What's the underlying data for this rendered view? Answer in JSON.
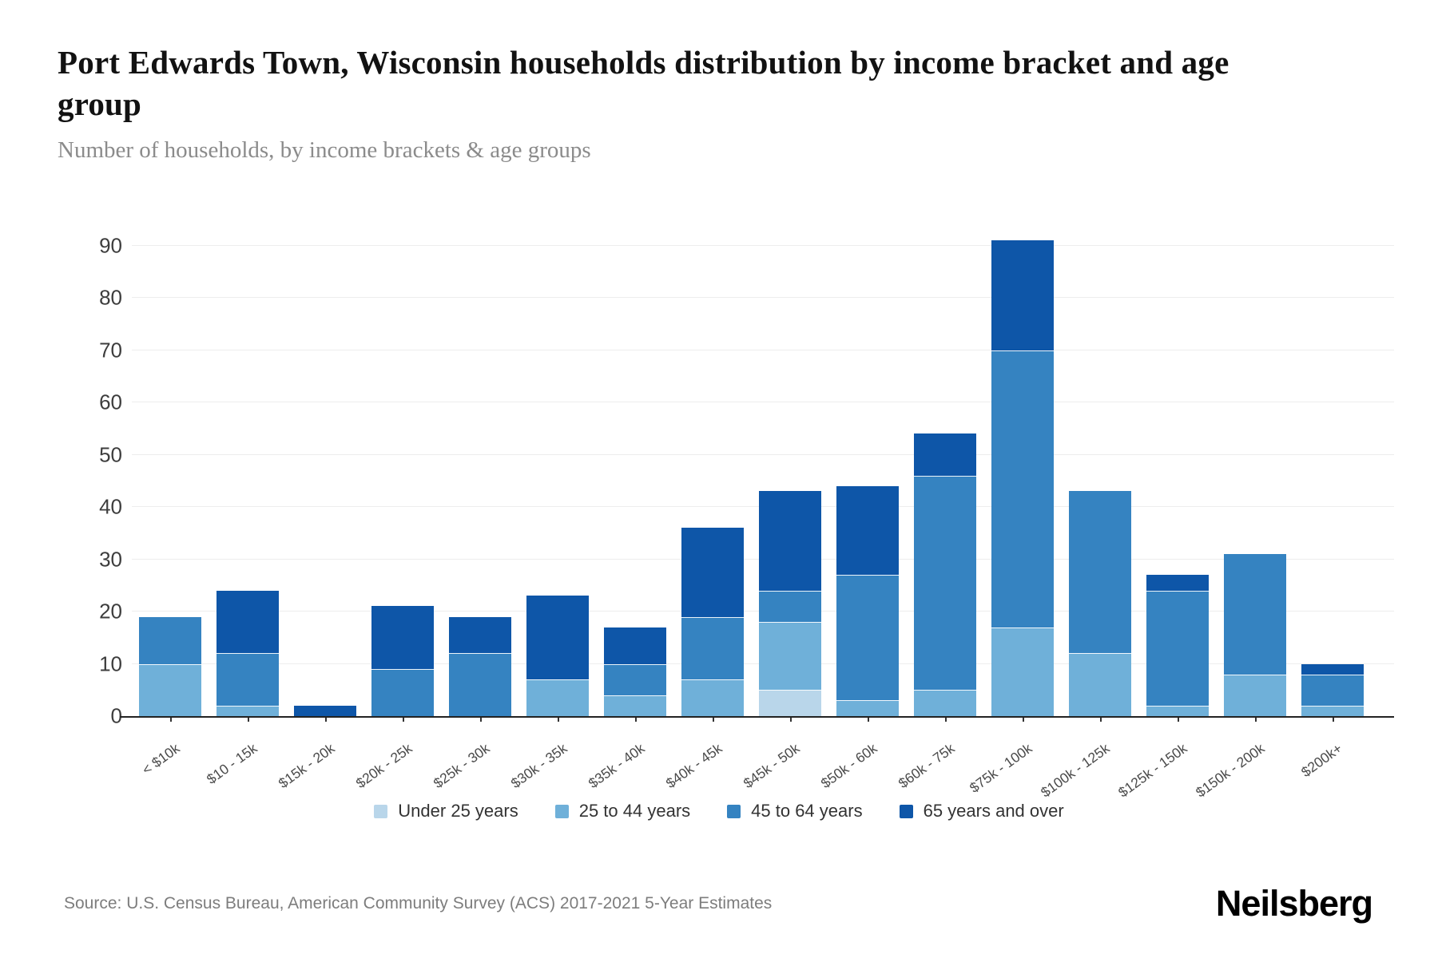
{
  "header": {
    "title": "Port Edwards Town, Wisconsin households distribution by income bracket and age group",
    "subtitle": "Number of households, by income brackets & age groups"
  },
  "footer": {
    "source": "Source: U.S. Census Bureau, American Community Survey (ACS) 2017-2021 5-Year Estimates",
    "brand": "Neilsberg"
  },
  "colors": {
    "grid": "#ededed",
    "axis": "#222222",
    "y_tick_label": "#3d3d3d",
    "x_tick_label": "#4a4a4a",
    "title": "#121212",
    "subtitle": "#8b8b8b"
  },
  "chart_data": {
    "type": "bar",
    "stacked": true,
    "title": "Port Edwards Town, Wisconsin households distribution by income bracket and age group",
    "subtitle": "Number of households, by income brackets & age groups",
    "xlabel": "",
    "ylabel": "",
    "ylim": [
      0,
      91
    ],
    "yticks": [
      0,
      10,
      20,
      30,
      40,
      50,
      60,
      70,
      80,
      90
    ],
    "grid": true,
    "legend_position": "bottom",
    "categories": [
      "< $10k",
      "$10 - 15k",
      "$15k - 20k",
      "$20k - 25k",
      "$25k - 30k",
      "$30k - 35k",
      "$35k - 40k",
      "$40k - 45k",
      "$45k - 50k",
      "$50k - 60k",
      "$60k - 75k",
      "$75k - 100k",
      "$100k - 125k",
      "$125k - 150k",
      "$150k - 200k",
      "$200k+"
    ],
    "series": [
      {
        "name": "Under 25 years",
        "color": "#b9d6ea",
        "values": [
          0,
          0,
          0,
          0,
          0,
          0,
          0,
          0,
          5,
          0,
          0,
          0,
          0,
          0,
          0,
          0
        ]
      },
      {
        "name": "25 to 44 years",
        "color": "#6fb0d9",
        "values": [
          10,
          2,
          0,
          0,
          0,
          7,
          4,
          7,
          13,
          3,
          5,
          17,
          12,
          2,
          8,
          2
        ]
      },
      {
        "name": "45 to 64 years",
        "color": "#3583c1",
        "values": [
          9,
          10,
          0,
          9,
          12,
          0,
          6,
          12,
          6,
          24,
          41,
          53,
          31,
          22,
          23,
          6
        ]
      },
      {
        "name": "65 years and over",
        "color": "#0e56a8",
        "values": [
          0,
          12,
          2,
          12,
          7,
          16,
          7,
          17,
          19,
          17,
          8,
          21,
          0,
          3,
          0,
          2
        ]
      }
    ],
    "totals": [
      19,
      24,
      2,
      21,
      19,
      23,
      17,
      36,
      43,
      44,
      54,
      91,
      43,
      27,
      31,
      10
    ]
  }
}
